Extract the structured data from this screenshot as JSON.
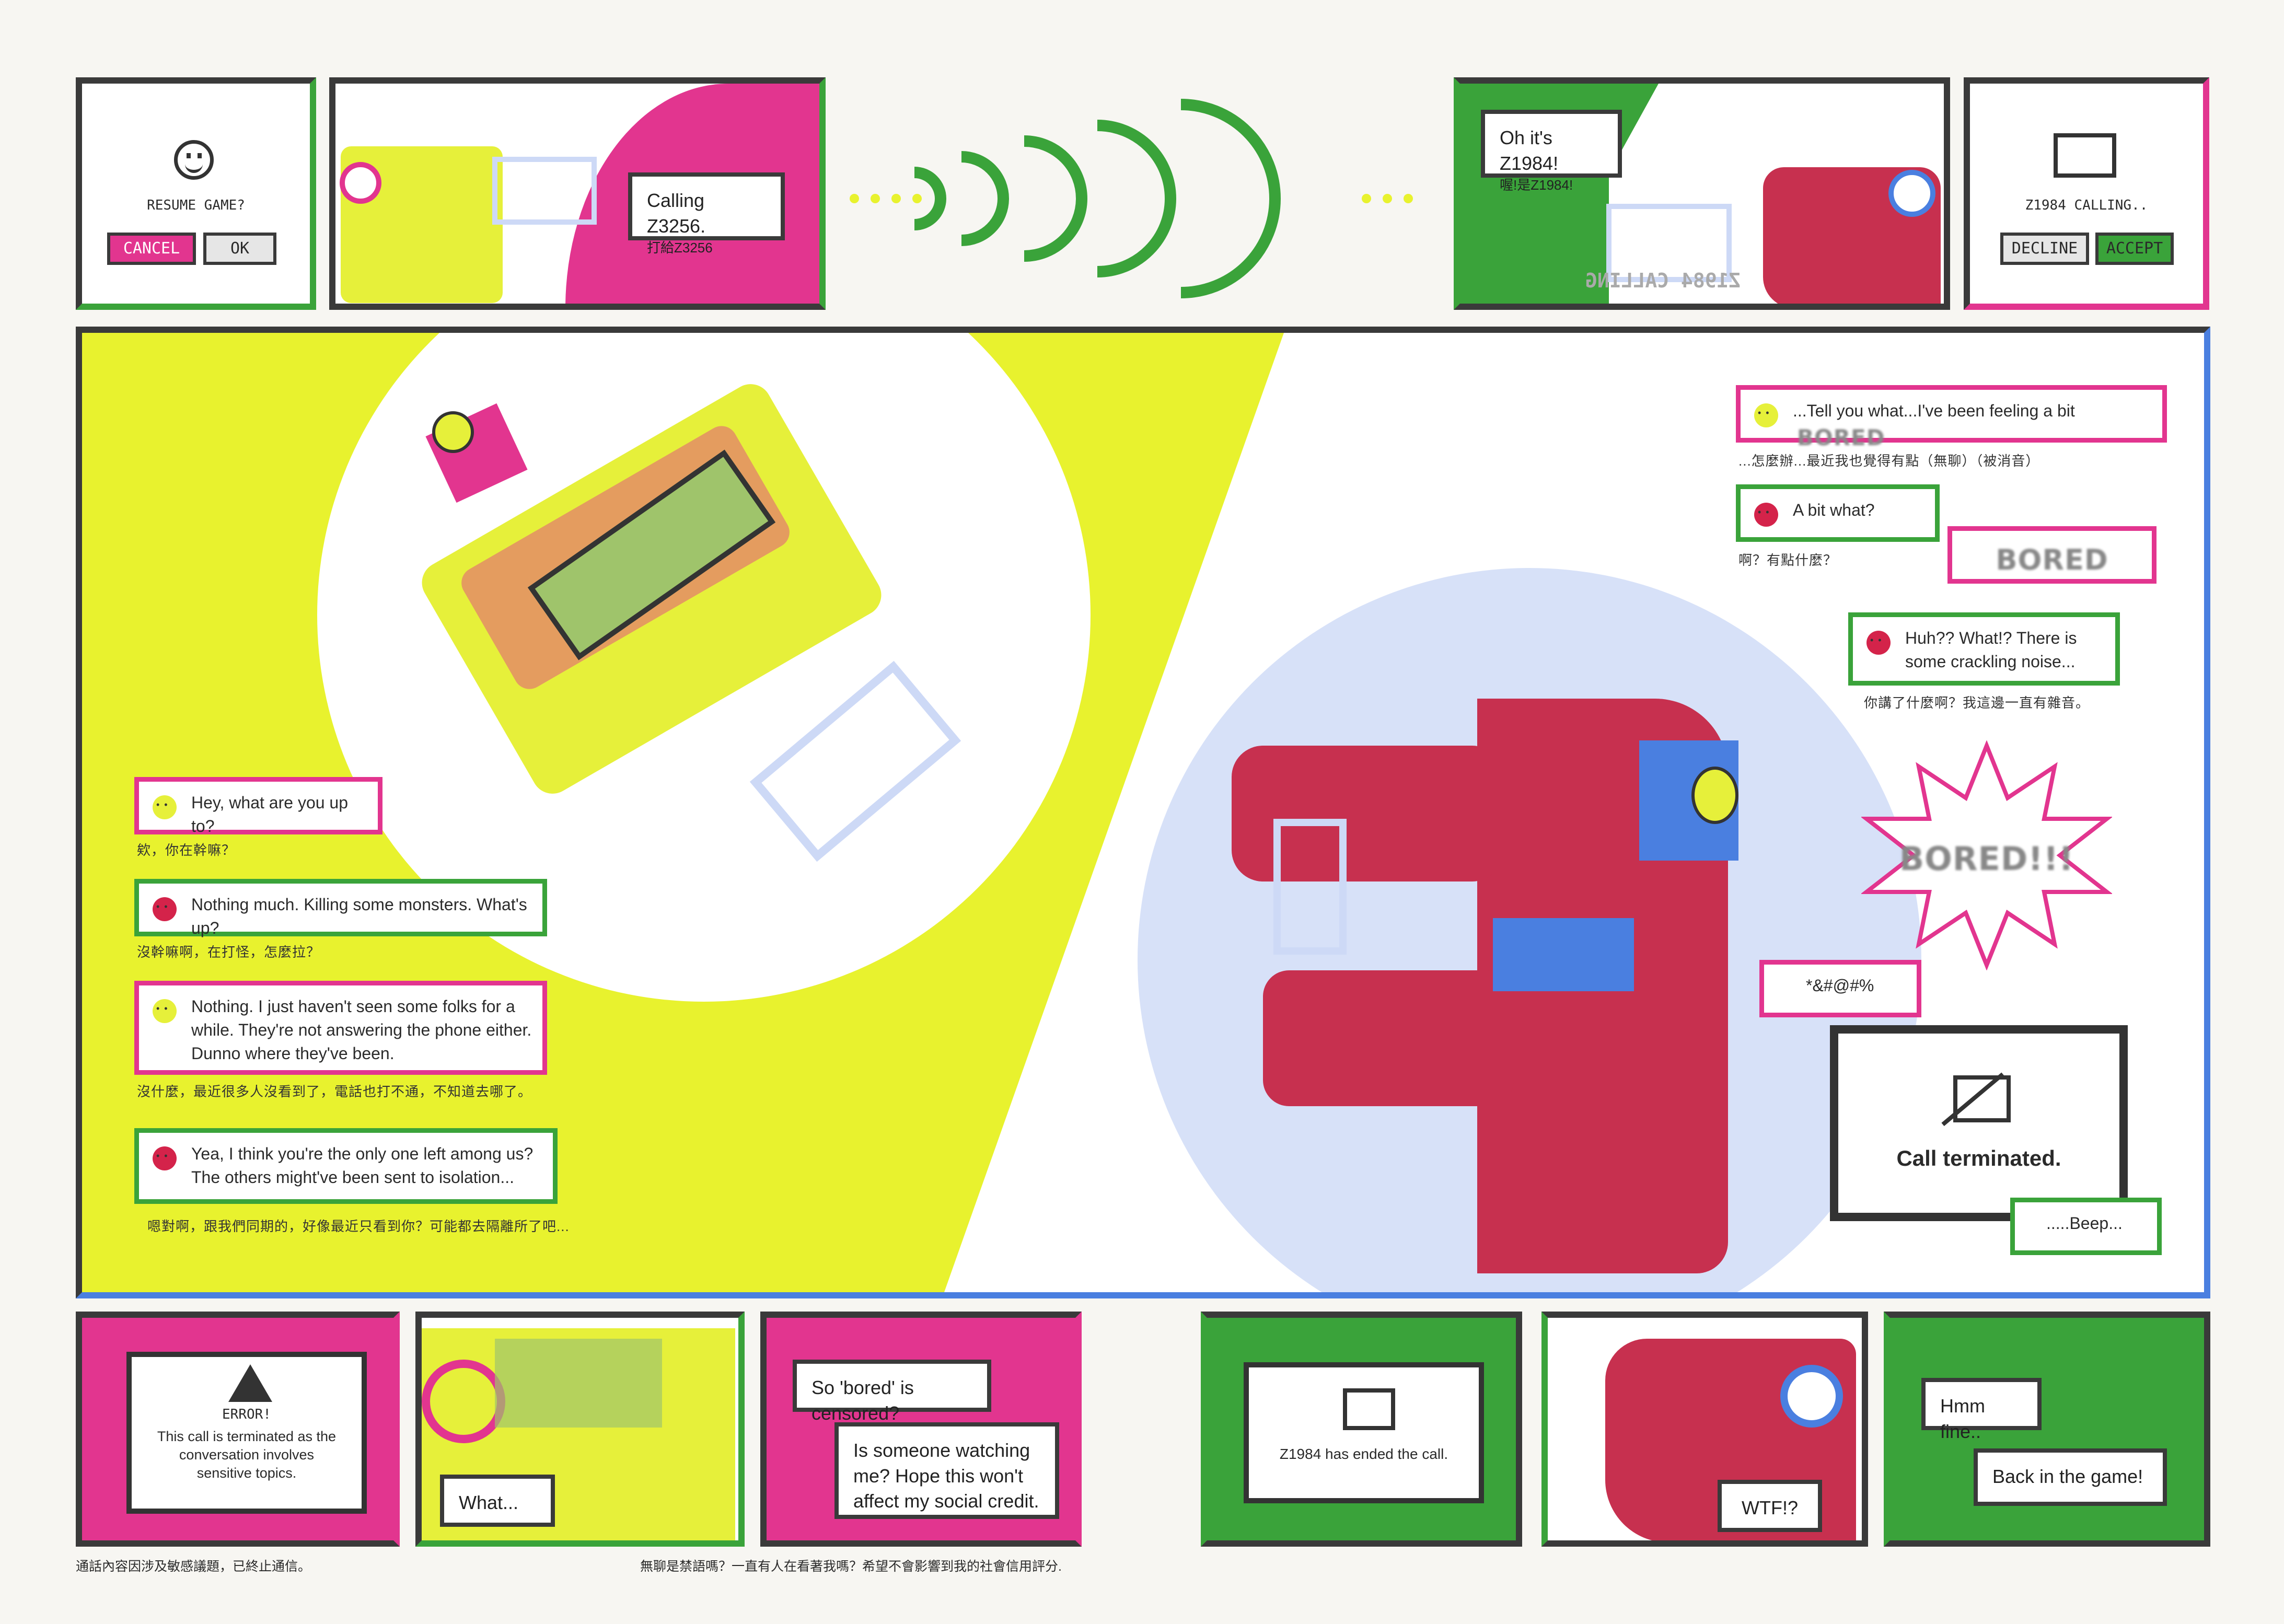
{
  "top_panels": {
    "resume": {
      "text": "RESUME GAME?",
      "cancel": "CANCEL",
      "ok": "OK"
    },
    "calling": {
      "bubble_en": "Calling Z3256.",
      "bubble_zh": "打給Z3256"
    },
    "incoming": {
      "bubble_en": "Oh it's Z1984!",
      "bubble_zh": "喔!是Z1984!",
      "mirrored": "Z1984 CALLING"
    },
    "accept": {
      "text": "Z1984 CALLING..",
      "decline": "DECLINE",
      "accept": "ACCEPT"
    }
  },
  "main_left_chat": [
    {
      "en": "Hey, what are you up to?",
      "zh": "欸，你在幹嘛？",
      "emoji": "y"
    },
    {
      "en": "Nothing much. Killing some monsters. What's up?",
      "zh": "沒幹嘛啊，在打怪，怎麼拉？",
      "emoji": "r"
    },
    {
      "en": "Nothing. I just haven't seen some folks for a while. They're not answering the phone either. Dunno where they've been.",
      "zh": "沒什麼，最近很多人沒看到了，電話也打不通，不知道去哪了。",
      "emoji": "y"
    },
    {
      "en": "Yea, I think you're the only one left among us? The others might've been sent to isolation...",
      "zh": "嗯對啊，跟我們同期的，好像最近只看到你？可能都去隔離所了吧...",
      "emoji": "r"
    }
  ],
  "main_right_chat": {
    "msg1_en": "...Tell you what...I've been feeling a bit",
    "msg1_censored": "BORED",
    "msg1_zh": "...怎麼辦...最近我也覺得有點（無聊）（被消音）",
    "msg2_en": "A bit what?",
    "msg2_zh": "啊？有點什麼？",
    "msg2_censored": "BORED",
    "msg3_en": "Huh?? What!? There is some crackling noise...",
    "msg3_zh": "你講了什麼啊？我這邊一直有雜音。",
    "shout": "BORED!!!",
    "symbols": "*&#@#%",
    "terminated": "Call terminated.",
    "beep": ".....Beep..."
  },
  "bottom_panels": {
    "error": {
      "title": "ERROR!",
      "body": "This call is terminated as the conversation involves sensitive topics."
    },
    "what": "What...",
    "censored": {
      "q1": "So 'bored' is censored?",
      "q2": "Is someone watching me? Hope this won't affect my social credit."
    },
    "ended": "Z1984 has ended the call.",
    "wtf": "WTF!?",
    "fine": "Hmm fine..",
    "back": "Back in the game!"
  },
  "footnotes": {
    "left": "通話內容因涉及敏感議題，已終止通信。",
    "right": "無聊是禁語嗎？一直有人在看著我嗎？希望不會影響到我的社會信用評分."
  },
  "colors": {
    "pink": "#e2358f",
    "green": "#3aa33a",
    "yellow": "#e8f22e",
    "blue": "#4a7fe0",
    "lightblue": "#cdd9f6",
    "red": "#c7304f"
  }
}
